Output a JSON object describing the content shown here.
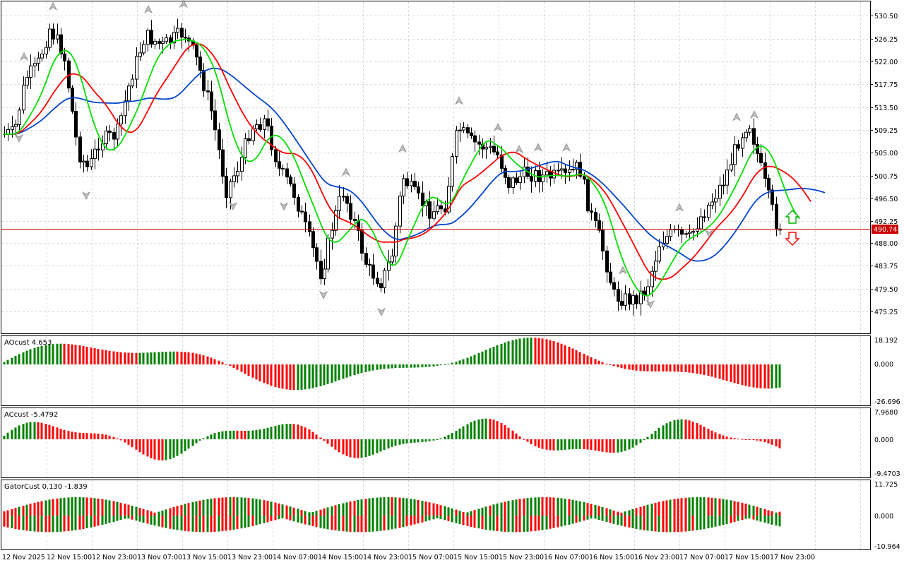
{
  "colors": {
    "bull": "#008000",
    "bear": "#ff0000",
    "ma_fast": "#00e000",
    "ma_mid": "#ff0000",
    "ma_slow": "#0044cc",
    "grid": "#d8d8d8",
    "price_line": "#cc0000"
  },
  "icons": {
    "up_arrow": "up-arrow-icon",
    "down_arrow": "down-arrow-icon",
    "fractal": "fractal-marker-icon"
  },
  "main": {
    "price_labels": [
      "530.50",
      "526.25",
      "522.00",
      "517.75",
      "513.50",
      "509.25",
      "505.00",
      "500.75",
      "496.50",
      "492.25",
      "488.00",
      "483.75",
      "479.50",
      "475.25"
    ],
    "current_price": "490.74"
  },
  "ao": {
    "title": "AOcust 4.653",
    "labels": [
      "18.192",
      "0.000",
      "-26.696"
    ]
  },
  "ac": {
    "title": "ACcust -5.4792",
    "labels": [
      "7.9680",
      "0.000",
      "-9.4703"
    ]
  },
  "gator": {
    "title": "GatorCust 0.130 -1.839",
    "labels": [
      "11.725",
      "0.000",
      "-10.964"
    ]
  },
  "time_labels": [
    "12 Nov 2025",
    "12 Nov 15:00",
    "12 Nov 23:00",
    "13 Nov 07:00",
    "13 Nov 15:00",
    "13 Nov 23:00",
    "14 Nov 07:00",
    "14 Nov 15:00",
    "14 Nov 23:00",
    "15 Nov 07:00",
    "15 Nov 15:00",
    "15 Nov 23:00",
    "16 Nov 07:00",
    "16 Nov 15:00",
    "16 Nov 23:00",
    "17 Nov 07:00",
    "17 Nov 15:00",
    "17 Nov 23:00"
  ]
}
